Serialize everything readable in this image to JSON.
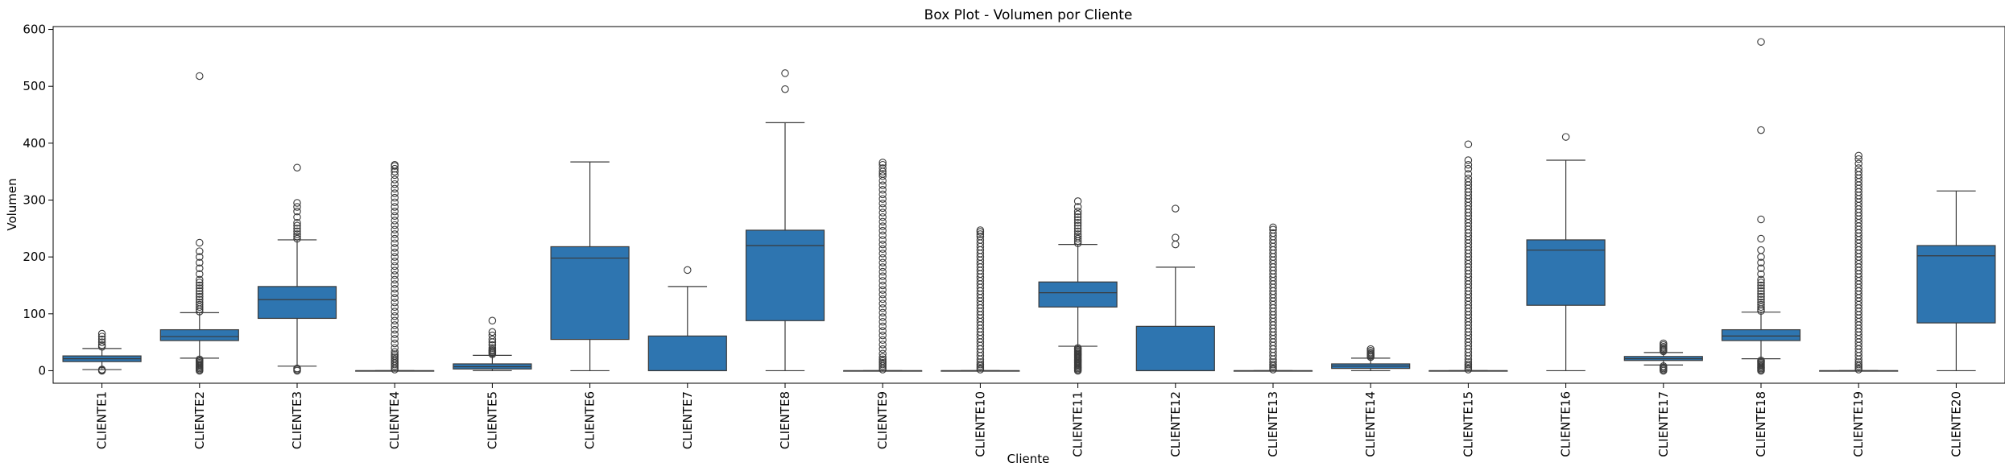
{
  "chart_data": {
    "type": "boxplot",
    "title": "Box Plot - Volumen por Cliente",
    "xlabel": "Cliente",
    "ylabel": "Volumen",
    "ylim": [
      -22,
      605
    ],
    "yticks": [
      0,
      100,
      200,
      300,
      400,
      500,
      600
    ],
    "grid": false,
    "legend": "none",
    "box_color": "#2e75b0",
    "line_color": "#3a3a3a",
    "categories": [
      "CLIENTE1",
      "CLIENTE2",
      "CLIENTE3",
      "CLIENTE4",
      "CLIENTE5",
      "CLIENTE6",
      "CLIENTE7",
      "CLIENTE8",
      "CLIENTE9",
      "CLIENTE10",
      "CLIENTE11",
      "CLIENTE12",
      "CLIENTE13",
      "CLIENTE14",
      "CLIENTE15",
      "CLIENTE16",
      "CLIENTE17",
      "CLIENTE18",
      "CLIENTE19",
      "CLIENTE20"
    ],
    "boxes": [
      {
        "whislo": 2,
        "q1": 16,
        "med": 21,
        "q3": 26,
        "whishi": 39,
        "fliers": [
          0,
          1,
          2,
          42,
          45,
          50,
          55,
          60,
          65
        ]
      },
      {
        "whislo": 22,
        "q1": 53,
        "med": 60,
        "q3": 72,
        "whishi": 102,
        "fliers": [
          0,
          2,
          4,
          6,
          8,
          10,
          12,
          14,
          16,
          18,
          20,
          104,
          108,
          112,
          116,
          120,
          125,
          130,
          135,
          140,
          145,
          150,
          155,
          160,
          170,
          180,
          190,
          200,
          210,
          225,
          518
        ]
      },
      {
        "whislo": 8,
        "q1": 92,
        "med": 125,
        "q3": 148,
        "whishi": 230,
        "fliers": [
          0,
          2,
          4,
          232,
          236,
          240,
          245,
          250,
          255,
          260,
          270,
          280,
          288,
          295,
          357
        ]
      },
      {
        "whislo": 0,
        "q1": 0,
        "med": 0,
        "q3": 0,
        "whishi": 0,
        "fliers": [
          2,
          5,
          8,
          11,
          14,
          17,
          20,
          23,
          26,
          29,
          33,
          40,
          48,
          56,
          64,
          72,
          80,
          88,
          96,
          104,
          112,
          120,
          128,
          136,
          144,
          152,
          160,
          168,
          176,
          184,
          192,
          200,
          208,
          216,
          224,
          232,
          240,
          248,
          256,
          264,
          272,
          280,
          288,
          296,
          304,
          312,
          320,
          328,
          336,
          344,
          350,
          355,
          360,
          362
        ]
      },
      {
        "whislo": 0,
        "q1": 3,
        "med": 7,
        "q3": 12,
        "whishi": 27,
        "fliers": [
          29,
          31,
          33,
          35,
          37,
          40,
          45,
          50,
          55,
          62,
          68,
          88
        ]
      },
      {
        "whislo": 0,
        "q1": 55,
        "med": 198,
        "q3": 218,
        "whishi": 367,
        "fliers": []
      },
      {
        "whislo": 0,
        "q1": 0,
        "med": 0,
        "q3": 61,
        "whishi": 148,
        "fliers": [
          177
        ]
      },
      {
        "whislo": 0,
        "q1": 88,
        "med": 220,
        "q3": 247,
        "whishi": 436,
        "fliers": [
          495,
          523
        ]
      },
      {
        "whislo": 0,
        "q1": 0,
        "med": 0,
        "q3": 0,
        "whishi": 0,
        "fliers": [
          2,
          5,
          8,
          11,
          14,
          17,
          20,
          24,
          30,
          38,
          46,
          54,
          62,
          70,
          78,
          86,
          94,
          102,
          110,
          118,
          126,
          134,
          142,
          150,
          158,
          166,
          174,
          182,
          190,
          198,
          206,
          214,
          222,
          230,
          238,
          246,
          254,
          262,
          270,
          278,
          286,
          294,
          302,
          310,
          318,
          326,
          334,
          342,
          346,
          350,
          356,
          362,
          366
        ]
      },
      {
        "whislo": 0,
        "q1": 0,
        "med": 0,
        "q3": 0,
        "whishi": 0,
        "fliers": [
          2,
          5,
          8,
          11,
          15,
          20,
          26,
          32,
          38,
          44,
          50,
          56,
          62,
          68,
          74,
          80,
          86,
          92,
          98,
          104,
          110,
          116,
          122,
          128,
          134,
          140,
          146,
          152,
          158,
          164,
          170,
          176,
          182,
          188,
          194,
          200,
          206,
          212,
          218,
          224,
          230,
          236,
          240,
          244,
          247
        ]
      },
      {
        "whislo": 43,
        "q1": 112,
        "med": 137,
        "q3": 156,
        "whishi": 222,
        "fliers": [
          0,
          2,
          4,
          6,
          8,
          10,
          12,
          14,
          16,
          18,
          20,
          22,
          24,
          26,
          28,
          30,
          32,
          34,
          36,
          38,
          40,
          224,
          228,
          232,
          236,
          240,
          245,
          250,
          255,
          260,
          265,
          270,
          275,
          280,
          288,
          298
        ]
      },
      {
        "whislo": 0,
        "q1": 0,
        "med": 0,
        "q3": 78,
        "whishi": 182,
        "fliers": [
          222,
          234,
          285
        ]
      },
      {
        "whislo": 0,
        "q1": 0,
        "med": 0,
        "q3": 0,
        "whishi": 0,
        "fliers": [
          2,
          5,
          8,
          11,
          15,
          20,
          26,
          32,
          38,
          44,
          50,
          56,
          62,
          68,
          74,
          80,
          86,
          92,
          98,
          104,
          110,
          116,
          122,
          128,
          134,
          140,
          146,
          152,
          158,
          164,
          170,
          176,
          182,
          188,
          194,
          200,
          206,
          212,
          218,
          224,
          230,
          236,
          242,
          248,
          252
        ]
      },
      {
        "whislo": 0,
        "q1": 4,
        "med": 8,
        "q3": 12,
        "whishi": 22,
        "fliers": [
          24,
          26,
          28,
          30,
          32,
          35,
          38
        ]
      },
      {
        "whislo": 0,
        "q1": 0,
        "med": 0,
        "q3": 0,
        "whishi": 0,
        "fliers": [
          2,
          5,
          8,
          11,
          15,
          20,
          26,
          32,
          38,
          44,
          50,
          56,
          62,
          68,
          74,
          80,
          86,
          92,
          98,
          104,
          110,
          116,
          122,
          128,
          134,
          140,
          146,
          152,
          158,
          164,
          170,
          176,
          182,
          188,
          194,
          200,
          206,
          212,
          218,
          224,
          230,
          236,
          242,
          248,
          254,
          260,
          266,
          272,
          278,
          284,
          290,
          296,
          302,
          308,
          314,
          320,
          326,
          332,
          338,
          346,
          355,
          362,
          370,
          398
        ]
      },
      {
        "whislo": 0,
        "q1": 115,
        "med": 212,
        "q3": 230,
        "whishi": 370,
        "fliers": [
          411
        ]
      },
      {
        "whislo": 10,
        "q1": 18,
        "med": 21,
        "q3": 25,
        "whishi": 32,
        "fliers": [
          0,
          2,
          4,
          6,
          8,
          34,
          36,
          38,
          40,
          42,
          45,
          48
        ]
      },
      {
        "whislo": 21,
        "q1": 53,
        "med": 61,
        "q3": 72,
        "whishi": 103,
        "fliers": [
          0,
          2,
          4,
          6,
          8,
          10,
          12,
          14,
          16,
          18,
          105,
          108,
          112,
          116,
          120,
          125,
          130,
          135,
          140,
          145,
          150,
          155,
          160,
          170,
          180,
          190,
          200,
          212,
          232,
          266,
          423,
          578
        ]
      },
      {
        "whislo": 0,
        "q1": 0,
        "med": 0,
        "q3": 0,
        "whishi": 0,
        "fliers": [
          2,
          5,
          8,
          11,
          15,
          20,
          26,
          32,
          38,
          44,
          50,
          56,
          62,
          68,
          74,
          80,
          86,
          92,
          98,
          104,
          110,
          116,
          122,
          128,
          134,
          140,
          146,
          152,
          158,
          164,
          170,
          176,
          182,
          188,
          194,
          200,
          206,
          212,
          218,
          224,
          230,
          236,
          242,
          248,
          254,
          260,
          266,
          272,
          278,
          284,
          290,
          296,
          302,
          308,
          314,
          320,
          326,
          332,
          338,
          344,
          350,
          356,
          364,
          372,
          378
        ]
      },
      {
        "whislo": 0,
        "q1": 84,
        "med": 202,
        "q3": 220,
        "whishi": 316,
        "fliers": []
      }
    ]
  }
}
